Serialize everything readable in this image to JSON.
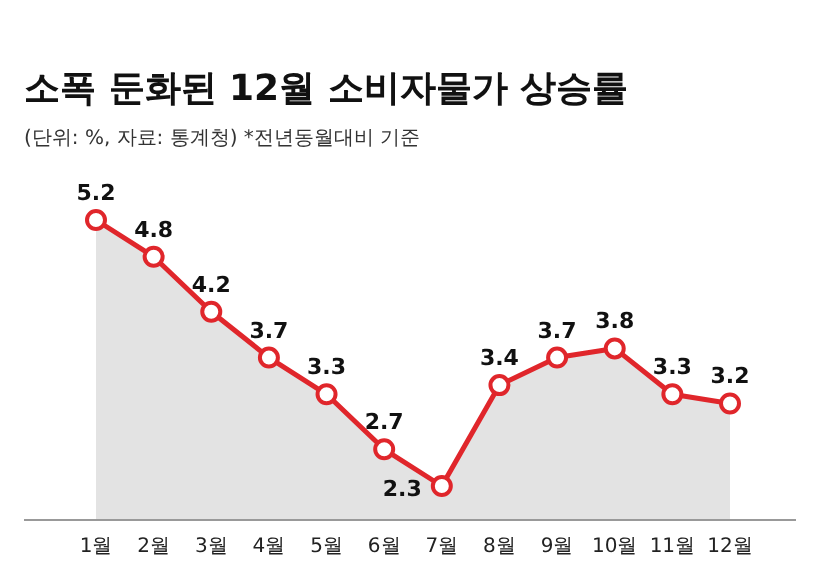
{
  "chart_data": {
    "type": "area",
    "title": "소폭 둔화된 12월 소비자물가 상승률",
    "subtitle": "(단위: %, 자료: 통계청) *전년동월대비 기준",
    "categories": [
      "1월",
      "2월",
      "3월",
      "4월",
      "5월",
      "6월",
      "7월",
      "8월",
      "9월",
      "10월",
      "11월",
      "12월"
    ],
    "series": [
      {
        "color": "#e0262b",
        "values": [
          5.2,
          4.8,
          4.2,
          3.7,
          3.3,
          2.7,
          2.3,
          3.4,
          3.7,
          3.8,
          3.3,
          3.2
        ]
      }
    ],
    "marker": "circle",
    "data_labels": true
  }
}
